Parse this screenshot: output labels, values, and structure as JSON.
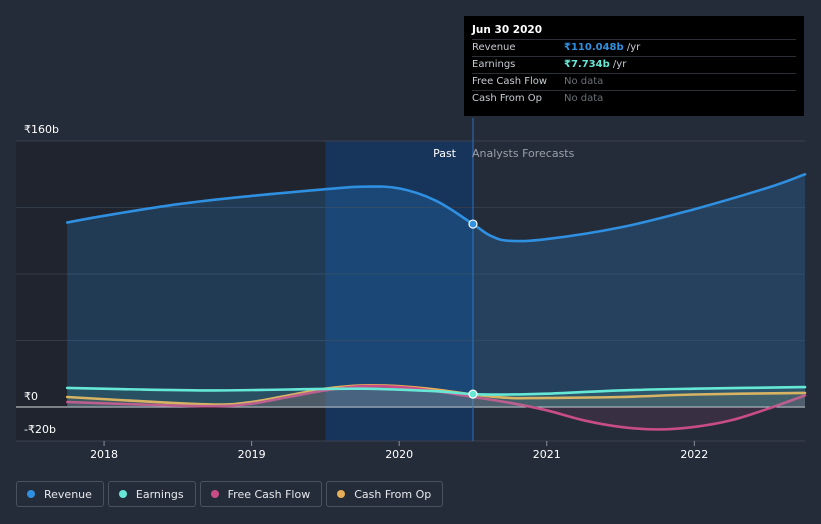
{
  "chart_data": {
    "type": "line",
    "y_unit_prefix": "₹",
    "ylim": [
      -20,
      160
    ],
    "xlim": [
      2017.62,
      2022.75
    ],
    "y_tick_labels": [
      {
        "value": 160,
        "label": "₹160b"
      },
      {
        "value": 0,
        "label": "₹0"
      },
      {
        "value": -20,
        "label": "-₹20b"
      }
    ],
    "x_ticks": [
      2018,
      2019,
      2020,
      2021,
      2022
    ],
    "x_tick_labels": [
      "2018",
      "2019",
      "2020",
      "2021",
      "2022"
    ],
    "past_label": "Past",
    "forecast_label": "Analysts Forecasts",
    "divider_x": 2020.5,
    "highlight_start_x": 2019.5,
    "series": [
      {
        "name": "Revenue",
        "color": "#2f8fe0",
        "area": true,
        "points": [
          [
            2017.75,
            111
          ],
          [
            2018.0,
            115
          ],
          [
            2018.5,
            122
          ],
          [
            2019.0,
            127
          ],
          [
            2019.5,
            131
          ],
          [
            2019.75,
            132.5
          ],
          [
            2020.0,
            131.5
          ],
          [
            2020.25,
            124
          ],
          [
            2020.5,
            110
          ],
          [
            2020.62,
            103
          ],
          [
            2020.75,
            100
          ],
          [
            2021.0,
            101
          ],
          [
            2021.5,
            108
          ],
          [
            2022.0,
            119
          ],
          [
            2022.5,
            132
          ],
          [
            2022.75,
            140
          ]
        ]
      },
      {
        "name": "Earnings",
        "color": "#65e8d6",
        "area": false,
        "points": [
          [
            2017.75,
            11.5
          ],
          [
            2018.25,
            10.5
          ],
          [
            2018.75,
            10
          ],
          [
            2019.25,
            10.5
          ],
          [
            2019.75,
            11
          ],
          [
            2020.25,
            9.5
          ],
          [
            2020.5,
            7.7
          ],
          [
            2020.75,
            7.5
          ],
          [
            2021.0,
            8
          ],
          [
            2021.5,
            10
          ],
          [
            2022.0,
            11
          ],
          [
            2022.75,
            12
          ]
        ]
      },
      {
        "name": "Free Cash Flow",
        "color": "#c84d86",
        "area": false,
        "points": [
          [
            2017.75,
            3
          ],
          [
            2018.25,
            1.5
          ],
          [
            2018.75,
            0.5
          ],
          [
            2019.0,
            2
          ],
          [
            2019.25,
            6
          ],
          [
            2019.5,
            10
          ],
          [
            2019.75,
            12.5
          ],
          [
            2020.0,
            12
          ],
          [
            2020.25,
            9.5
          ],
          [
            2020.5,
            6
          ],
          [
            2020.75,
            2.5
          ],
          [
            2021.0,
            -2
          ],
          [
            2021.25,
            -8
          ],
          [
            2021.5,
            -12
          ],
          [
            2021.75,
            -13.5
          ],
          [
            2022.0,
            -12
          ],
          [
            2022.25,
            -8
          ],
          [
            2022.5,
            -1
          ],
          [
            2022.75,
            7
          ]
        ]
      },
      {
        "name": "Cash From Op",
        "color": "#e8ae55",
        "area": false,
        "points": [
          [
            2017.75,
            6
          ],
          [
            2018.25,
            3.5
          ],
          [
            2018.75,
            1.5
          ],
          [
            2019.0,
            3
          ],
          [
            2019.25,
            7
          ],
          [
            2019.5,
            11
          ],
          [
            2019.75,
            13
          ],
          [
            2020.0,
            12.5
          ],
          [
            2020.25,
            10.5
          ],
          [
            2020.5,
            7.5
          ],
          [
            2020.75,
            5.5
          ],
          [
            2021.0,
            5.5
          ],
          [
            2021.5,
            6
          ],
          [
            2022.0,
            7.5
          ],
          [
            2022.75,
            8.5
          ]
        ]
      }
    ],
    "markers": [
      {
        "series": "Revenue",
        "x": 2020.5,
        "y": 110.048
      },
      {
        "series": "Earnings",
        "x": 2020.5,
        "y": 7.734
      }
    ]
  },
  "tooltip": {
    "date": "Jun 30 2020",
    "rows": [
      {
        "label": "Revenue",
        "value": "₹110.048b",
        "unit": " /yr"
      },
      {
        "label": "Earnings",
        "value": "₹7.734b",
        "unit": " /yr"
      },
      {
        "label": "Free Cash Flow",
        "value": "No data"
      },
      {
        "label": "Cash From Op",
        "value": "No data"
      }
    ]
  },
  "legend": [
    {
      "label": "Revenue",
      "color": "#2f8fe0"
    },
    {
      "label": "Earnings",
      "color": "#65e8d6"
    },
    {
      "label": "Free Cash Flow",
      "color": "#c84d86"
    },
    {
      "label": "Cash From Op",
      "color": "#e8ae55"
    }
  ]
}
